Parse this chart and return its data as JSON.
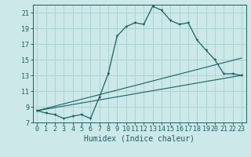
{
  "title": "",
  "xlabel": "Humidex (Indice chaleur)",
  "bg_color": "#cce8e8",
  "line_color": "#1a6060",
  "grid_color": "#aad4d4",
  "xlim": [
    -0.5,
    23.5
  ],
  "ylim": [
    7,
    22
  ],
  "yticks": [
    7,
    9,
    11,
    13,
    15,
    17,
    19,
    21
  ],
  "xticks": [
    0,
    1,
    2,
    3,
    4,
    5,
    6,
    7,
    8,
    9,
    10,
    11,
    12,
    13,
    14,
    15,
    16,
    17,
    18,
    19,
    20,
    21,
    22,
    23
  ],
  "main_line_x": [
    0,
    1,
    2,
    3,
    4,
    5,
    6,
    7,
    8,
    9,
    10,
    11,
    12,
    13,
    14,
    15,
    16,
    17,
    18,
    19,
    20,
    21,
    22,
    23
  ],
  "main_line_y": [
    8.5,
    8.2,
    8.0,
    7.5,
    7.8,
    8.0,
    7.5,
    10.2,
    13.2,
    18.0,
    19.2,
    19.7,
    19.5,
    21.8,
    21.3,
    20.0,
    19.5,
    19.7,
    17.5,
    16.2,
    15.0,
    13.2,
    13.2,
    13.0
  ],
  "line2_x": [
    0,
    23
  ],
  "line2_y": [
    8.5,
    13.0
  ],
  "line3_x": [
    0,
    23
  ],
  "line3_y": [
    8.5,
    15.2
  ],
  "tick_fontsize": 6.0,
  "xlabel_fontsize": 7.0
}
